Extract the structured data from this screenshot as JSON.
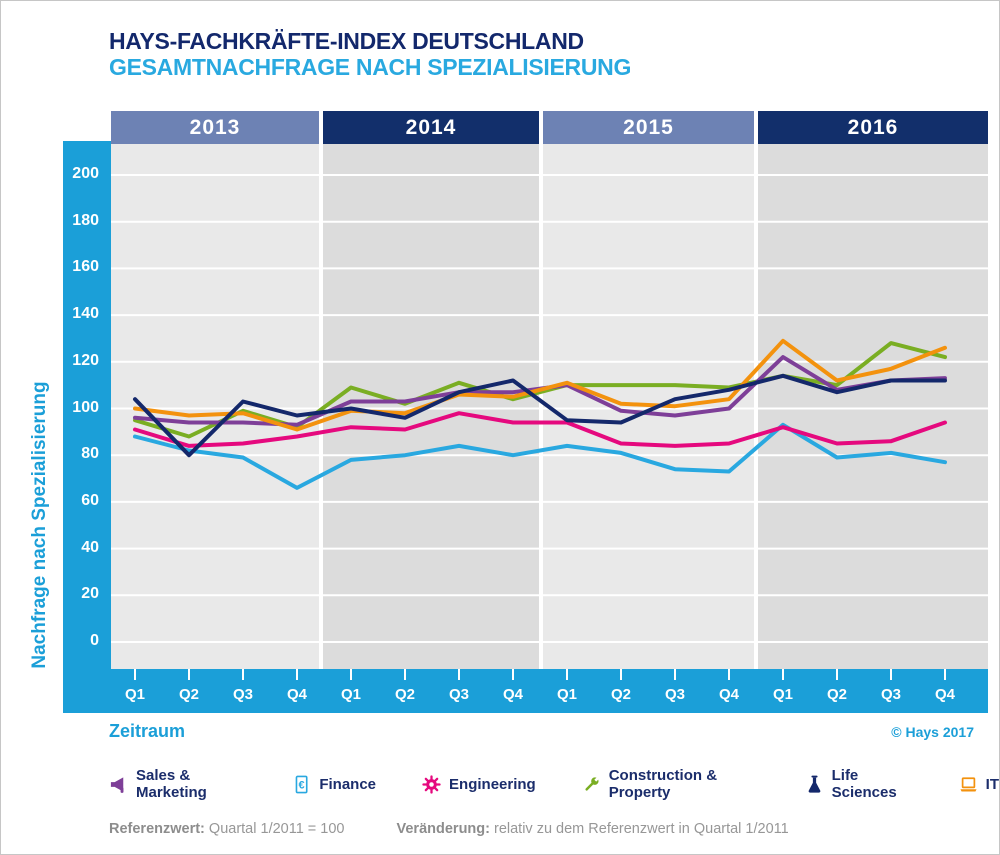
{
  "header": {
    "title_line1": "HAYS-FACHKRÄFTE-INDEX DEUTSCHLAND",
    "title_line2": "GESAMTNACHFRAGE NACH SPEZIALISIERUNG"
  },
  "colors": {
    "axis_band_blue": "#1b9fd8",
    "title_navy": "#13286c",
    "title_lightblue": "#29a9e0",
    "legend_text_navy": "#1b2d6b",
    "footnote_gray": "#979797",
    "gridline_white": "#ffffff"
  },
  "chart_data": {
    "type": "line",
    "title": "Hays-Fachkräfte-Index Deutschland — Gesamtnachfrage nach Spezialisierung",
    "ylabel": "Nachfrage nach Spezialisierung",
    "xlabel": "Zeitraum",
    "ylim": [
      0,
      200
    ],
    "ytick_step": 20,
    "yticks": [
      "200",
      "180",
      "160",
      "140",
      "120",
      "100",
      "80",
      "60",
      "40",
      "20",
      "0"
    ],
    "grid": true,
    "legend_position": "bottom",
    "year_bands": [
      {
        "label": "2013",
        "header_color": "#6d82b4",
        "column_color": "#e9e9e9"
      },
      {
        "label": "2014",
        "header_color": "#122f6b",
        "column_color": "#dcdcdc"
      },
      {
        "label": "2015",
        "header_color": "#6d82b4",
        "column_color": "#e9e9e9"
      },
      {
        "label": "2016",
        "header_color": "#122f6b",
        "column_color": "#dcdcdc"
      }
    ],
    "categories": [
      "Q1",
      "Q2",
      "Q3",
      "Q4",
      "Q1",
      "Q2",
      "Q3",
      "Q4",
      "Q1",
      "Q2",
      "Q3",
      "Q4",
      "Q1",
      "Q2",
      "Q3",
      "Q4"
    ],
    "series": [
      {
        "name": "Sales & Marketing",
        "icon": "megaphone-icon",
        "color": "#7e3f98",
        "values": [
          96,
          94,
          94,
          93,
          103,
          103,
          107,
          107,
          110,
          99,
          97,
          100,
          122,
          108,
          112,
          113
        ]
      },
      {
        "name": "Finance",
        "icon": "euro-document-icon",
        "color": "#29a8e0",
        "values": [
          88,
          82,
          79,
          66,
          78,
          80,
          84,
          80,
          84,
          81,
          74,
          73,
          93,
          79,
          81,
          77
        ]
      },
      {
        "name": "Engineering",
        "icon": "gear-icon",
        "color": "#e5097e",
        "values": [
          91,
          84,
          85,
          88,
          92,
          91,
          98,
          94,
          94,
          85,
          84,
          85,
          92,
          85,
          86,
          94
        ]
      },
      {
        "name": "Construction & Property",
        "icon": "wrench-icon",
        "color": "#7aae23",
        "values": [
          95,
          88,
          99,
          92,
          109,
          102,
          111,
          104,
          110,
          110,
          110,
          109,
          114,
          110,
          128,
          122
        ]
      },
      {
        "name": "Life Sciences",
        "icon": "flask-icon",
        "color": "#14286b",
        "values": [
          104,
          80,
          103,
          97,
          100,
          96,
          107,
          112,
          95,
          94,
          104,
          108,
          114,
          107,
          112,
          112
        ]
      },
      {
        "name": "IT",
        "icon": "laptop-icon",
        "color": "#f3920e",
        "values": [
          100,
          97,
          98,
          91,
          99,
          98,
          106,
          105,
          111,
          102,
          101,
          104,
          129,
          112,
          117,
          126
        ]
      }
    ],
    "draw_order": [
      1,
      2,
      3,
      0,
      5,
      4
    ]
  },
  "footer": {
    "copyright": "© Hays 2017",
    "ref_label": "Referenzwert:",
    "ref_text": "Quartal 1/2011 = 100",
    "change_label": "Veränderung:",
    "change_text": "relativ zu dem Referenzwert in Quartal 1/2011"
  }
}
